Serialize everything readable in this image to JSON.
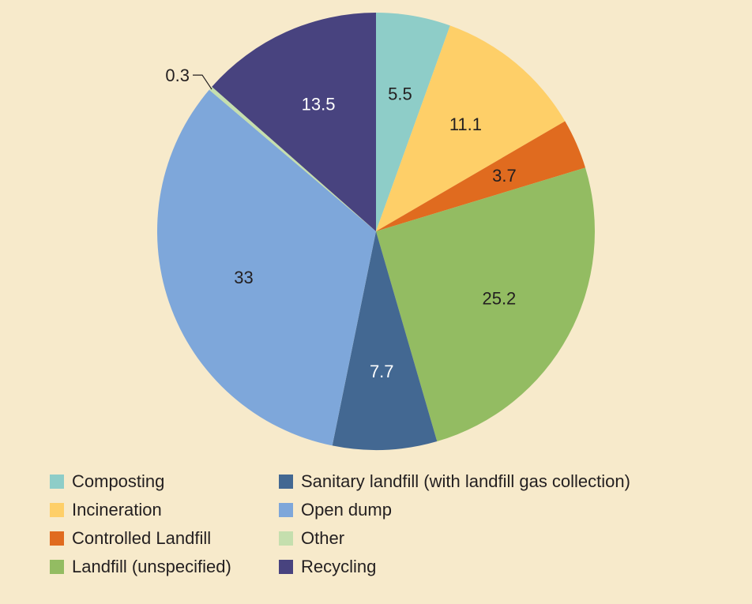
{
  "chart_data": {
    "type": "pie",
    "title": "",
    "start": "top",
    "direction": "clockwise",
    "legend_position": "bottom",
    "slices": [
      {
        "label": "Composting",
        "value": 5.5,
        "display": "5.5",
        "color": "#8ecdc8",
        "text_color": "#231f20"
      },
      {
        "label": "Incineration",
        "value": 11.1,
        "display": "11.1",
        "color": "#fecf68",
        "text_color": "#231f20"
      },
      {
        "label": "Controlled Landfill",
        "value": 3.7,
        "display": "3.7",
        "color": "#e06b1f",
        "text_color": "#231f20"
      },
      {
        "label": "Landfill (unspecified)",
        "value": 25.2,
        "display": "25.2",
        "color": "#93bc62",
        "text_color": "#231f20"
      },
      {
        "label": "Sanitary landfill (with landfill gas collection)",
        "value": 7.7,
        "display": "7.7",
        "color": "#436892",
        "text_color": "#ffffff"
      },
      {
        "label": "Open dump",
        "value": 33,
        "display": "33",
        "color": "#7ea7da",
        "text_color": "#231f20"
      },
      {
        "label": "Other",
        "value": 0.3,
        "display": "0.3",
        "color": "#c5dfae",
        "text_color": "#231f20"
      },
      {
        "label": "Recycling",
        "value": 13.5,
        "display": "13.5",
        "color": "#48437f",
        "text_color": "#ffffff"
      }
    ],
    "legend_order": [
      0,
      1,
      2,
      3,
      4,
      5,
      6,
      7
    ]
  }
}
